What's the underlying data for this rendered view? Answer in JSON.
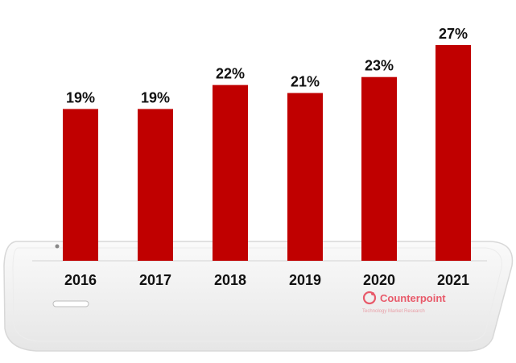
{
  "chart_data": {
    "type": "bar",
    "categories": [
      "2016",
      "2017",
      "2018",
      "2019",
      "2020",
      "2021"
    ],
    "values": [
      19,
      19,
      22,
      21,
      23,
      27
    ],
    "value_labels": [
      "19%",
      "19%",
      "22%",
      "21%",
      "23%",
      "27%"
    ],
    "title": "",
    "xlabel": "",
    "ylabel": "",
    "ylim": [
      0,
      27
    ],
    "grid": false,
    "bar_color": "#c00000"
  },
  "branding": {
    "name": "Counterpoint",
    "tagline": "Technology Market Research",
    "color": "#e85a6a"
  }
}
